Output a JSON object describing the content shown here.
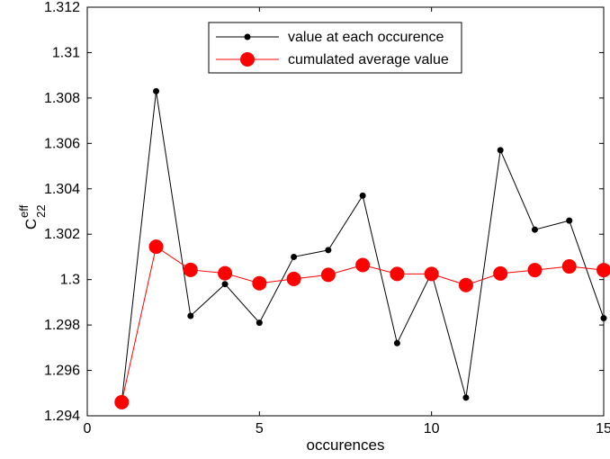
{
  "chart_data": {
    "type": "line",
    "xlabel": "occurences",
    "ylabel_main": "C",
    "ylabel_sup": "eff",
    "ylabel_sub": "22",
    "xlim": [
      0,
      15
    ],
    "ylim": [
      1.294,
      1.312
    ],
    "xticks": [
      0,
      5,
      10,
      15
    ],
    "xtick_labels": [
      "0",
      "5",
      "10",
      "15"
    ],
    "yticks": [
      1.294,
      1.296,
      1.298,
      1.3,
      1.302,
      1.304,
      1.306,
      1.308,
      1.31,
      1.312
    ],
    "ytick_labels": [
      "1.294",
      "1.296",
      "1.298",
      "1.3",
      "1.302",
      "1.304",
      "1.306",
      "1.308",
      "1.31",
      "1.312"
    ],
    "grid": false,
    "legend_position": "top-center",
    "x": [
      1,
      2,
      3,
      4,
      5,
      6,
      7,
      8,
      9,
      10,
      11,
      12,
      13,
      14,
      15
    ],
    "series": [
      {
        "name": "value at each occurence",
        "color": "#000000",
        "marker": "small-dot",
        "values": [
          1.2946,
          1.3083,
          1.2984,
          1.2998,
          1.2981,
          1.301,
          1.3013,
          1.3037,
          1.2972,
          1.3003,
          1.2948,
          1.3057,
          1.3022,
          1.3026,
          1.2983
        ]
      },
      {
        "name": "cumulated average value",
        "color": "#ff0000",
        "marker": "large-dot",
        "values": [
          1.2946,
          1.30145,
          1.30043,
          1.30028,
          1.29984,
          1.30003,
          1.30021,
          1.30064,
          1.30025,
          1.30025,
          1.29976,
          1.30027,
          1.30042,
          1.30058,
          1.30042
        ]
      }
    ]
  }
}
